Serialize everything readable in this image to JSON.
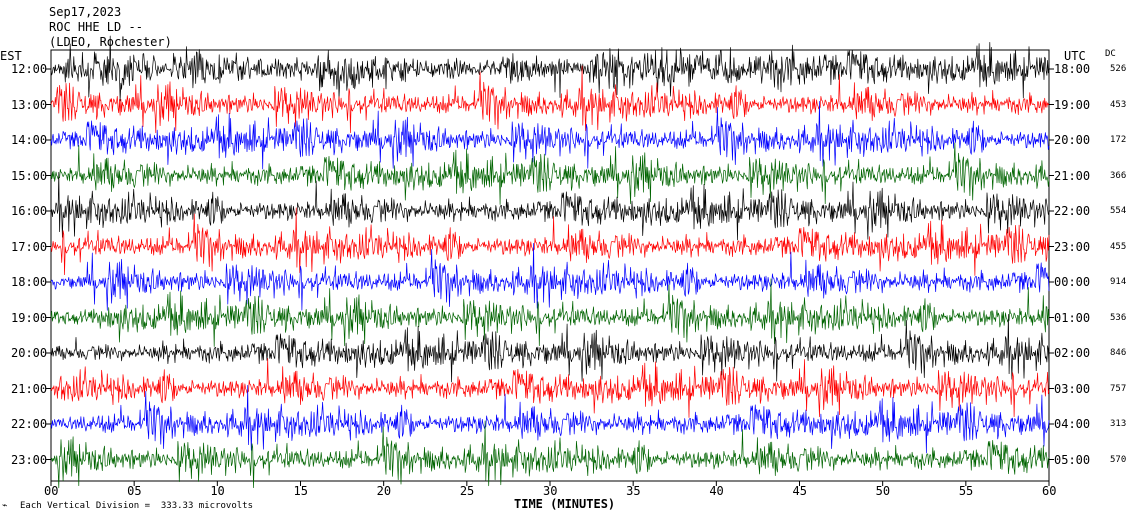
{
  "header": {
    "date": "Sep17,2023",
    "station": "ROC HHE LD --",
    "location": "(LDEO, Rochester)"
  },
  "chart_data": {
    "type": "line",
    "title": "Sep17,2023",
    "xlabel": "TIME (MINUTES)",
    "xlim": [
      0,
      60
    ],
    "x_ticks": [
      "00",
      "05",
      "10",
      "15",
      "20",
      "25",
      "30",
      "35",
      "40",
      "45",
      "50",
      "55",
      "60"
    ],
    "left_axis_label": "EST",
    "right_axis_label": "UTC",
    "dc_label": "DC",
    "rows": [
      {
        "est": "12:00",
        "utc": "18:00",
        "dc": "526",
        "color": "#000000"
      },
      {
        "est": "13:00",
        "utc": "19:00",
        "dc": "453",
        "color": "#ff0000"
      },
      {
        "est": "14:00",
        "utc": "20:00",
        "dc": "172",
        "color": "#0000ff"
      },
      {
        "est": "15:00",
        "utc": "21:00",
        "dc": "366",
        "color": "#006400"
      },
      {
        "est": "16:00",
        "utc": "22:00",
        "dc": "554",
        "color": "#000000"
      },
      {
        "est": "17:00",
        "utc": "23:00",
        "dc": "455",
        "color": "#ff0000"
      },
      {
        "est": "18:00",
        "utc": "00:00",
        "dc": "914",
        "color": "#0000ff"
      },
      {
        "est": "19:00",
        "utc": "01:00",
        "dc": "536",
        "color": "#006400"
      },
      {
        "est": "20:00",
        "utc": "02:00",
        "dc": "846",
        "color": "#000000"
      },
      {
        "est": "21:00",
        "utc": "03:00",
        "dc": "757",
        "color": "#ff0000"
      },
      {
        "est": "22:00",
        "utc": "04:00",
        "dc": "313",
        "color": "#0000ff"
      },
      {
        "est": "23:00",
        "utc": "05:00",
        "dc": "570",
        "color": "#006400"
      }
    ],
    "scale_note": "Each Vertical Division =  333.33 microvolts"
  }
}
